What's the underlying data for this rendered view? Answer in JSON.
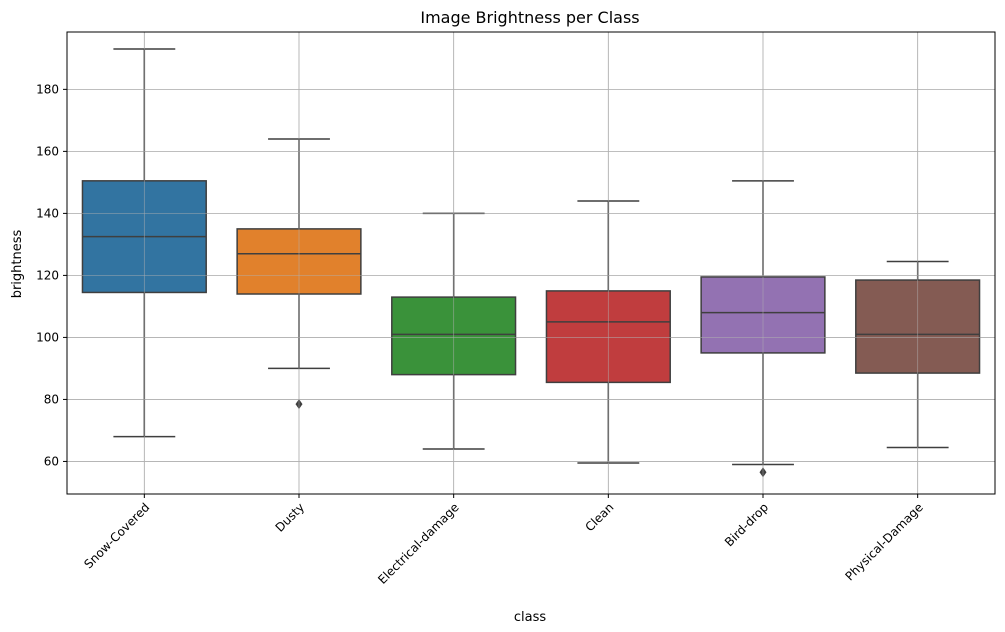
{
  "chart_data": {
    "type": "box",
    "title": "Image Brightness per Class",
    "xlabel": "class",
    "ylabel": "brightness",
    "ylim": [
      49.5,
      198.5
    ],
    "yticks": [
      60,
      80,
      100,
      120,
      140,
      160,
      180
    ],
    "grid": true,
    "categories": [
      "Snow-Covered",
      "Dusty",
      "Electrical-damage",
      "Clean",
      "Bird-drop",
      "Physical-Damage"
    ],
    "colors": [
      "#3274a1",
      "#e1812c",
      "#3a923a",
      "#c03d3e",
      "#9372b2",
      "#845b53"
    ],
    "boxes": [
      {
        "whisker_low": 68,
        "q1": 114.5,
        "median": 132.5,
        "q3": 150.5,
        "whisker_high": 193,
        "outliers": []
      },
      {
        "whisker_low": 90,
        "q1": 114,
        "median": 127,
        "q3": 135,
        "whisker_high": 164,
        "outliers": [
          78.5
        ]
      },
      {
        "whisker_low": 64,
        "q1": 88,
        "median": 101,
        "q3": 113,
        "whisker_high": 140,
        "outliers": []
      },
      {
        "whisker_low": 59.5,
        "q1": 85.5,
        "median": 105,
        "q3": 115,
        "whisker_high": 144,
        "outliers": []
      },
      {
        "whisker_low": 59,
        "q1": 95,
        "median": 108,
        "q3": 119.5,
        "whisker_high": 150.5,
        "outliers": [
          56.5
        ]
      },
      {
        "whisker_low": 64.5,
        "q1": 88.5,
        "median": 101,
        "q3": 118.5,
        "whisker_high": 124.5,
        "outliers": []
      }
    ]
  }
}
